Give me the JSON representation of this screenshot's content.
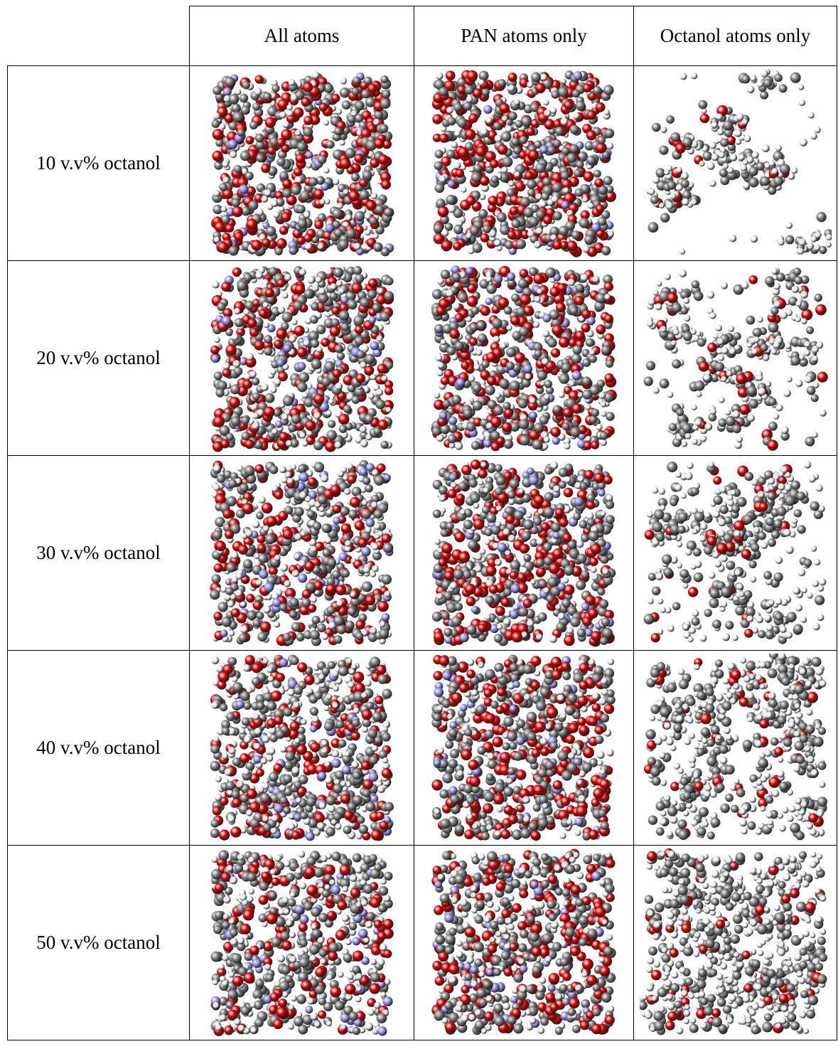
{
  "table": {
    "columns": [
      "All atoms",
      "PAN atoms only",
      "Octanol atoms only"
    ],
    "rows": [
      {
        "label": "10 v.v% octanol",
        "octanol_fraction": 0.1
      },
      {
        "label": "20 v.v% octanol",
        "octanol_fraction": 0.2
      },
      {
        "label": "30 v.v% octanol",
        "octanol_fraction": 0.3
      },
      {
        "label": "40 v.v% octanol",
        "octanol_fraction": 0.4
      },
      {
        "label": "50 v.v% octanol",
        "octanol_fraction": 0.5
      }
    ]
  },
  "colors": {
    "oxygen": "#d40000",
    "carbon": "#7c7c7c",
    "hydrogen": "#f2f2f2",
    "nitrogen": "#8f8ff2"
  }
}
